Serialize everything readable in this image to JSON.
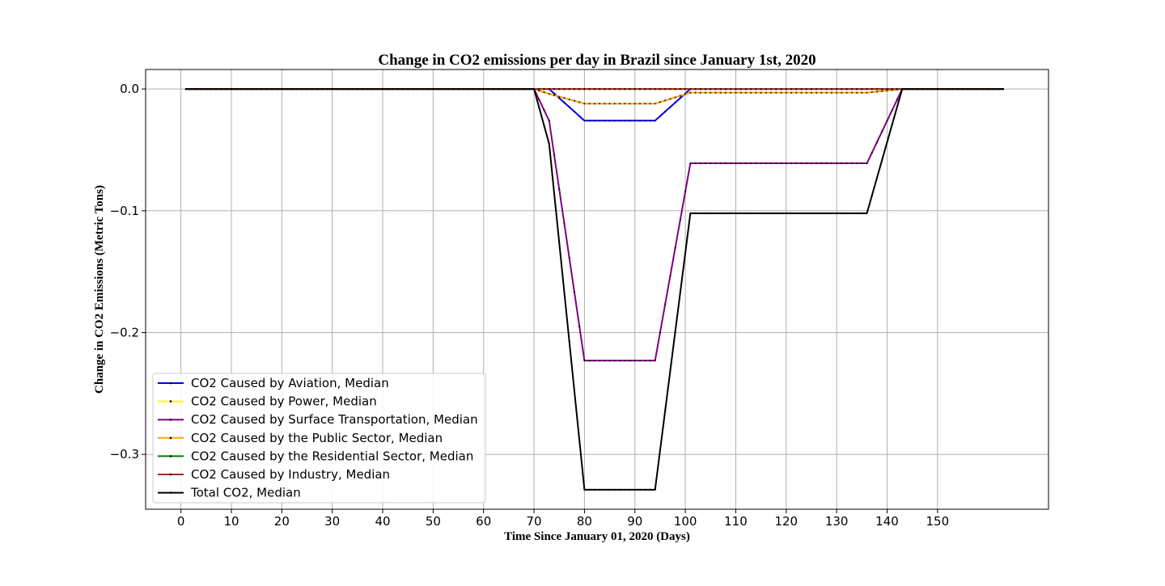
{
  "chart_data": {
    "type": "line",
    "title": "Change in CO2 emissions per day in Brazil since January 1st, 2020",
    "xlabel": "Time Since January 01, 2020 (Days)",
    "ylabel": "Change in CO2 Emissions (Metric Tons)",
    "xlim": [
      -7,
      172
    ],
    "ylim": [
      -0.345,
      0.016
    ],
    "x_ticks": [
      0,
      10,
      20,
      30,
      40,
      50,
      60,
      70,
      80,
      90,
      100,
      110,
      120,
      130,
      140,
      150
    ],
    "y_ticks": [
      0.0,
      -0.1,
      -0.2,
      -0.3
    ],
    "y_tick_labels": [
      "0.0",
      "−0.1",
      "−0.2",
      "−0.3"
    ],
    "grid": true,
    "legend_position": "lower-left",
    "series": [
      {
        "name": "CO2 Caused by Aviation, Median",
        "color": "#0000ff",
        "points": [
          [
            1,
            0
          ],
          [
            70,
            0
          ],
          [
            73,
            0
          ],
          [
            80,
            -0.026
          ],
          [
            94,
            -0.026
          ],
          [
            101,
            0
          ],
          [
            163,
            0
          ]
        ]
      },
      {
        "name": "CO2 Caused by Power, Median",
        "color": "#ffff00",
        "points": [
          [
            1,
            0
          ],
          [
            163,
            0
          ]
        ]
      },
      {
        "name": "CO2 Caused by Surface Transportation, Median",
        "color": "#800080",
        "points": [
          [
            1,
            0
          ],
          [
            70,
            0
          ],
          [
            73,
            -0.026
          ],
          [
            80,
            -0.223
          ],
          [
            94,
            -0.223
          ],
          [
            101,
            -0.061
          ],
          [
            136,
            -0.061
          ],
          [
            143,
            0
          ],
          [
            163,
            0
          ]
        ]
      },
      {
        "name": "CO2 Caused by the Public Sector, Median",
        "color": "#ffa500",
        "points": [
          [
            1,
            0
          ],
          [
            70,
            0
          ],
          [
            73,
            -0.004
          ],
          [
            80,
            -0.012
          ],
          [
            94,
            -0.012
          ],
          [
            101,
            -0.003
          ],
          [
            136,
            -0.003
          ],
          [
            143,
            0
          ],
          [
            163,
            0
          ]
        ]
      },
      {
        "name": "CO2 Caused by the Residential Sector, Median",
        "color": "#008000",
        "points": [
          [
            1,
            0
          ],
          [
            163,
            0
          ]
        ]
      },
      {
        "name": "CO2 Caused by Industry, Median",
        "color": "#a52a2a",
        "points": [
          [
            1,
            0
          ],
          [
            163,
            0
          ]
        ]
      },
      {
        "name": "Total CO2, Median",
        "color": "#000000",
        "points": [
          [
            1,
            0
          ],
          [
            70,
            0
          ],
          [
            73,
            -0.045
          ],
          [
            80,
            -0.329
          ],
          [
            94,
            -0.329
          ],
          [
            101,
            -0.102
          ],
          [
            136,
            -0.102
          ],
          [
            143,
            0
          ],
          [
            163,
            0
          ]
        ]
      }
    ]
  }
}
